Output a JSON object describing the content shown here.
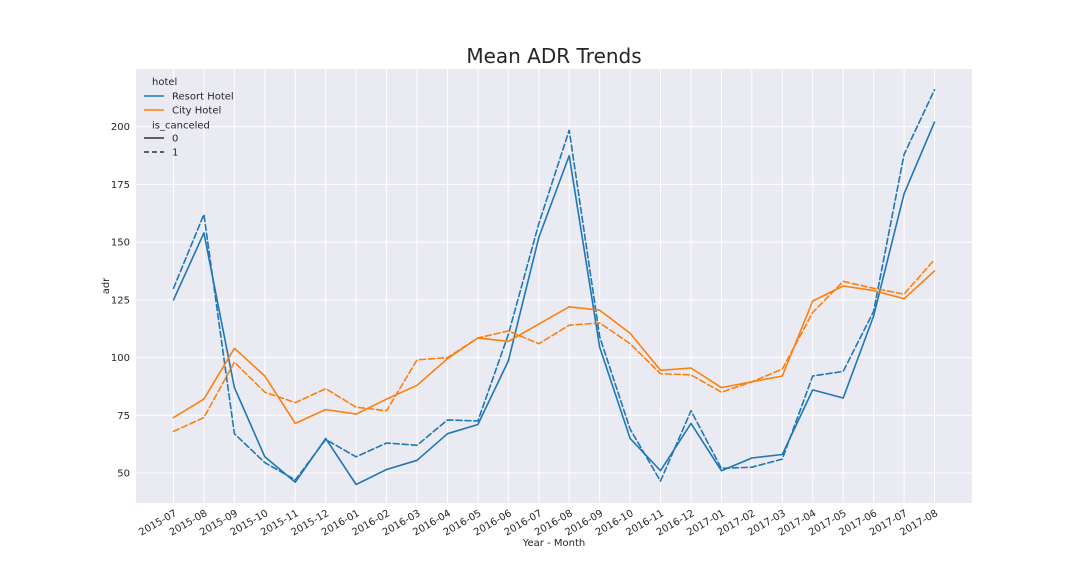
{
  "chart_data": {
    "type": "line",
    "title": "Mean ADR Trends",
    "xlabel": "Year - Month",
    "ylabel": "adr",
    "categories": [
      "2015-07",
      "2015-08",
      "2015-09",
      "2015-10",
      "2015-11",
      "2015-12",
      "2016-01",
      "2016-02",
      "2016-03",
      "2016-04",
      "2016-05",
      "2016-06",
      "2016-07",
      "2016-08",
      "2016-09",
      "2016-10",
      "2016-11",
      "2016-12",
      "2017-01",
      "2017-02",
      "2017-03",
      "2017-04",
      "2017-05",
      "2017-06",
      "2017-07",
      "2017-08"
    ],
    "ylim": [
      37,
      225
    ],
    "yticks": [
      50,
      75,
      100,
      125,
      150,
      175,
      200
    ],
    "grid": true,
    "legend": {
      "placement": "top-left",
      "hue_title": "hotel",
      "style_title": "is_canceled",
      "hue_entries": [
        "Resort Hotel",
        "City Hotel"
      ],
      "style_entries": [
        "0",
        "1"
      ]
    },
    "colors": {
      "Resort Hotel": "#1f77b4",
      "City Hotel": "#ff7f0e",
      "background": "#eaeaf2",
      "grid": "#ffffff"
    },
    "series": [
      {
        "hotel": "Resort Hotel",
        "is_canceled": "0",
        "values": [
          125,
          154,
          87,
          57,
          46,
          65,
          45,
          51.5,
          55.5,
          67,
          71,
          98.5,
          152,
          187.5,
          104.5,
          65,
          51,
          71.5,
          51,
          56.5,
          58,
          86,
          82.5,
          118,
          171,
          202
        ]
      },
      {
        "hotel": "Resort Hotel",
        "is_canceled": "1",
        "values": [
          130,
          162,
          67,
          54.5,
          47,
          64.5,
          57,
          63,
          62,
          73,
          72.5,
          110,
          158,
          198.5,
          109,
          69,
          46.5,
          77,
          52,
          52.5,
          56,
          92,
          94,
          120,
          188,
          216
        ]
      },
      {
        "hotel": "City Hotel",
        "is_canceled": "0",
        "values": [
          74,
          82,
          104,
          92,
          71.5,
          77.5,
          75.5,
          82,
          88,
          99.5,
          108.5,
          107,
          114.5,
          122,
          120.5,
          110.5,
          94.5,
          95.5,
          87,
          89.5,
          92,
          124.5,
          131,
          129,
          125.5,
          137.5
        ]
      },
      {
        "hotel": "City Hotel",
        "is_canceled": "1",
        "values": [
          68,
          74,
          98,
          85,
          80.5,
          86.5,
          78.5,
          77,
          99,
          100,
          108.5,
          111.5,
          106,
          114,
          115,
          106,
          93,
          92.5,
          85,
          89.5,
          95,
          119.5,
          133,
          130,
          127.5,
          142.5
        ]
      }
    ]
  }
}
